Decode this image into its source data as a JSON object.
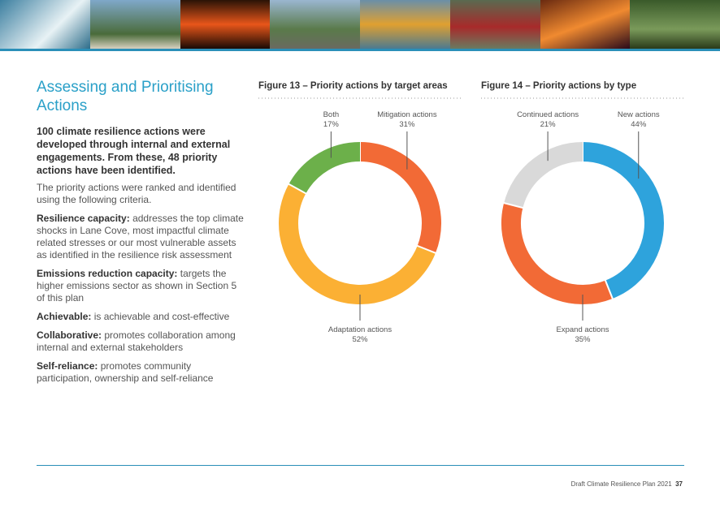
{
  "heading": "Assessing and Prioritising Actions",
  "lead": "100 climate resilience actions were developed through internal and external engagements. From these, 48 priority actions have been identified.",
  "intro": "The priority actions were ranked and identified using the following criteria.",
  "criteria": [
    {
      "term": "Resilience capacity:",
      "text": "addresses the top climate shocks in Lane Cove, most impactful climate related stresses or our most vulnerable assets as identified in the resilience risk assessment"
    },
    {
      "term": "Emissions reduction capacity:",
      "text": "targets the higher emissions sector as shown in Section 5 of this plan"
    },
    {
      "term": "Achievable:",
      "text": "is achievable and cost-effective"
    },
    {
      "term": "Collaborative:",
      "text": "promotes collaboration among internal and external stakeholders"
    },
    {
      "term": "Self-reliance:",
      "text": "promotes community participation, ownership and self-reliance"
    }
  ],
  "footer": {
    "title": "Draft Climate Resilience Plan 2021",
    "page": "37"
  },
  "chart_data": [
    {
      "type": "pie",
      "title": "Figure 13 – Priority actions by target areas",
      "categories": [
        "Mitigation actions",
        "Adaptation actions",
        "Both"
      ],
      "values": [
        31,
        52,
        17
      ],
      "value_labels": [
        "31%",
        "52%",
        "17%"
      ],
      "colors": [
        "#f26a36",
        "#fbb034",
        "#6cb04a"
      ]
    },
    {
      "type": "pie",
      "title": "Figure 14 – Priority actions by type",
      "categories": [
        "New actions",
        "Expand actions",
        "Continued actions"
      ],
      "values": [
        44,
        35,
        21
      ],
      "value_labels": [
        "44%",
        "35%",
        "21%"
      ],
      "colors": [
        "#2ea3dc",
        "#f26a36",
        "#d9d9d9"
      ]
    }
  ]
}
